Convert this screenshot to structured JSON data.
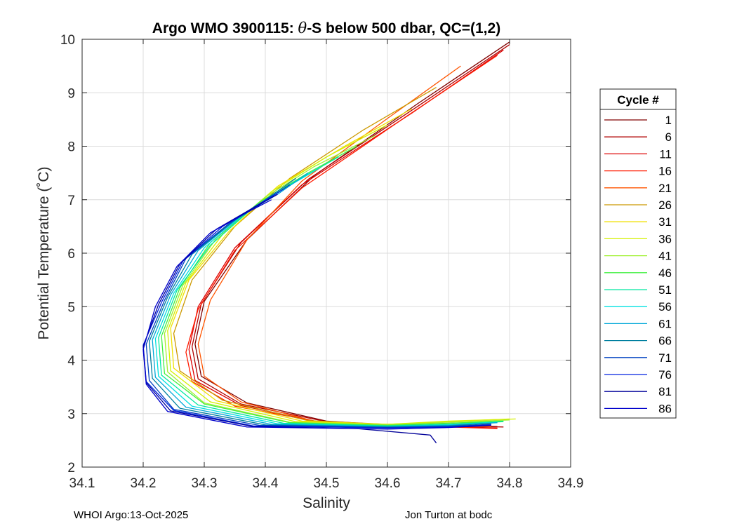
{
  "chart_data": {
    "type": "line",
    "title": "Argo WMO 3900115: θ-S below 500 dbar,  QC=(1,2)",
    "title_parts": {
      "pre": "Argo WMO 3900115: ",
      "symbol": "θ",
      "post": "-S below 500 dbar,  QC=(1,2)"
    },
    "xlabel": "Salinity",
    "ylabel": "Potential Temperature (˚C)",
    "xlim": [
      34.1,
      34.9
    ],
    "ylim": [
      2,
      10
    ],
    "x_ticks": [
      "34.1",
      "34.2",
      "34.3",
      "34.4",
      "34.5",
      "34.6",
      "34.7",
      "34.8",
      "34.9"
    ],
    "y_ticks": [
      "2",
      "3",
      "4",
      "5",
      "6",
      "7",
      "8",
      "9",
      "10"
    ],
    "grid": true,
    "legend": {
      "title": "Cycle #",
      "placement": "right-outside",
      "entries": [
        {
          "label": "1",
          "color": "#800000"
        },
        {
          "label": "6",
          "color": "#b00000"
        },
        {
          "label": "11",
          "color": "#dd0000"
        },
        {
          "label": "16",
          "color": "#ff1a00"
        },
        {
          "label": "21",
          "color": "#ff5500"
        },
        {
          "label": "26",
          "color": "#cc9900"
        },
        {
          "label": "31",
          "color": "#f0e000"
        },
        {
          "label": "36",
          "color": "#d4f000"
        },
        {
          "label": "41",
          "color": "#a0f030"
        },
        {
          "label": "46",
          "color": "#40f040"
        },
        {
          "label": "51",
          "color": "#00e8a0"
        },
        {
          "label": "56",
          "color": "#00e0e0"
        },
        {
          "label": "61",
          "color": "#00a8d8"
        },
        {
          "label": "66",
          "color": "#0080a0"
        },
        {
          "label": "71",
          "color": "#0040c0"
        },
        {
          "label": "76",
          "color": "#0020e0"
        },
        {
          "label": "81",
          "color": "#000099"
        },
        {
          "label": "86",
          "color": "#0000cc"
        }
      ]
    },
    "series": [
      {
        "name": "1",
        "points": [
          [
            34.8,
            9.95
          ],
          [
            34.65,
            8.8
          ],
          [
            34.48,
            7.45
          ],
          [
            34.37,
            6.25
          ],
          [
            34.3,
            5.1
          ],
          [
            34.285,
            4.3
          ],
          [
            34.295,
            3.7
          ],
          [
            34.37,
            3.2
          ],
          [
            34.5,
            2.86
          ],
          [
            34.6,
            2.79
          ],
          [
            34.7,
            2.78
          ],
          [
            34.78,
            2.76
          ]
        ]
      },
      {
        "name": "6",
        "points": [
          [
            34.8,
            9.9
          ],
          [
            34.65,
            8.75
          ],
          [
            34.47,
            7.38
          ],
          [
            34.36,
            6.2
          ],
          [
            34.295,
            5.05
          ],
          [
            34.28,
            4.25
          ],
          [
            34.29,
            3.65
          ],
          [
            34.36,
            3.18
          ],
          [
            34.5,
            2.85
          ],
          [
            34.6,
            2.78
          ],
          [
            34.7,
            2.77
          ],
          [
            34.79,
            2.75
          ]
        ]
      },
      {
        "name": "11",
        "points": [
          [
            34.79,
            9.8
          ],
          [
            34.64,
            8.62
          ],
          [
            34.46,
            7.28
          ],
          [
            34.35,
            6.1
          ],
          [
            34.29,
            5.0
          ],
          [
            34.275,
            4.2
          ],
          [
            34.285,
            3.62
          ],
          [
            34.36,
            3.15
          ],
          [
            34.49,
            2.84
          ],
          [
            34.6,
            2.77
          ],
          [
            34.7,
            2.76
          ],
          [
            34.78,
            2.73
          ]
        ]
      },
      {
        "name": "16",
        "points": [
          [
            34.78,
            9.7
          ],
          [
            34.63,
            8.55
          ],
          [
            34.46,
            7.22
          ],
          [
            34.35,
            6.05
          ],
          [
            34.29,
            4.95
          ],
          [
            34.27,
            4.15
          ],
          [
            34.28,
            3.6
          ],
          [
            34.35,
            3.14
          ],
          [
            34.49,
            2.84
          ],
          [
            34.6,
            2.77
          ],
          [
            34.7,
            2.75
          ],
          [
            34.78,
            2.72
          ]
        ]
      },
      {
        "name": "21",
        "points": [
          [
            34.72,
            9.5
          ],
          [
            34.6,
            8.52
          ],
          [
            34.46,
            7.35
          ],
          [
            34.37,
            6.25
          ],
          [
            34.31,
            5.12
          ],
          [
            34.29,
            4.3
          ],
          [
            34.3,
            3.7
          ],
          [
            34.36,
            3.22
          ],
          [
            34.48,
            2.86
          ],
          [
            34.6,
            2.78
          ],
          [
            34.7,
            2.78
          ],
          [
            34.77,
            2.76
          ]
        ]
      },
      {
        "name": "26",
        "points": [
          [
            34.68,
            9.1
          ],
          [
            34.56,
            8.3
          ],
          [
            34.44,
            7.4
          ],
          [
            34.35,
            6.5
          ],
          [
            34.28,
            5.5
          ],
          [
            34.25,
            4.5
          ],
          [
            34.26,
            3.8
          ],
          [
            34.33,
            3.25
          ],
          [
            34.47,
            2.87
          ],
          [
            34.6,
            2.8
          ],
          [
            34.7,
            2.82
          ],
          [
            34.78,
            2.85
          ]
        ]
      },
      {
        "name": "31",
        "points": [
          [
            34.64,
            8.7
          ],
          [
            34.53,
            8.0
          ],
          [
            34.42,
            7.25
          ],
          [
            34.34,
            6.4
          ],
          [
            34.275,
            5.5
          ],
          [
            34.245,
            4.6
          ],
          [
            34.25,
            3.85
          ],
          [
            34.32,
            3.24
          ],
          [
            34.46,
            2.86
          ],
          [
            34.6,
            2.8
          ],
          [
            34.7,
            2.85
          ],
          [
            34.8,
            2.9
          ]
        ]
      },
      {
        "name": "36",
        "points": [
          [
            34.6,
            8.4
          ],
          [
            34.5,
            7.8
          ],
          [
            34.41,
            7.15
          ],
          [
            34.33,
            6.35
          ],
          [
            34.27,
            5.45
          ],
          [
            34.24,
            4.55
          ],
          [
            34.245,
            3.8
          ],
          [
            34.31,
            3.22
          ],
          [
            34.45,
            2.85
          ],
          [
            34.6,
            2.8
          ],
          [
            34.7,
            2.86
          ],
          [
            34.81,
            2.9
          ]
        ]
      },
      {
        "name": "41",
        "points": [
          [
            34.58,
            8.2
          ],
          [
            34.48,
            7.62
          ],
          [
            34.4,
            7.05
          ],
          [
            34.32,
            6.28
          ],
          [
            34.265,
            5.4
          ],
          [
            34.235,
            4.5
          ],
          [
            34.24,
            3.78
          ],
          [
            34.3,
            3.2
          ],
          [
            34.44,
            2.84
          ],
          [
            34.6,
            2.79
          ],
          [
            34.7,
            2.84
          ],
          [
            34.8,
            2.88
          ]
        ]
      },
      {
        "name": "46",
        "points": [
          [
            34.55,
            8.0
          ],
          [
            34.47,
            7.5
          ],
          [
            34.39,
            6.95
          ],
          [
            34.31,
            6.2
          ],
          [
            34.26,
            5.35
          ],
          [
            34.23,
            4.45
          ],
          [
            34.235,
            3.75
          ],
          [
            34.3,
            3.18
          ],
          [
            34.44,
            2.83
          ],
          [
            34.6,
            2.78
          ],
          [
            34.7,
            2.82
          ],
          [
            34.79,
            2.86
          ]
        ]
      },
      {
        "name": "51",
        "points": [
          [
            34.52,
            7.8
          ],
          [
            34.45,
            7.35
          ],
          [
            34.38,
            6.85
          ],
          [
            34.31,
            6.15
          ],
          [
            34.255,
            5.3
          ],
          [
            34.225,
            4.42
          ],
          [
            34.23,
            3.72
          ],
          [
            34.29,
            3.16
          ],
          [
            34.43,
            2.82
          ],
          [
            34.6,
            2.77
          ],
          [
            34.7,
            2.8
          ],
          [
            34.79,
            2.85
          ]
        ]
      },
      {
        "name": "56",
        "points": [
          [
            34.49,
            7.6
          ],
          [
            34.43,
            7.2
          ],
          [
            34.37,
            6.78
          ],
          [
            34.3,
            6.1
          ],
          [
            34.25,
            5.25
          ],
          [
            34.22,
            4.4
          ],
          [
            34.225,
            3.7
          ],
          [
            34.28,
            3.14
          ],
          [
            34.42,
            2.81
          ],
          [
            34.6,
            2.76
          ],
          [
            34.7,
            2.79
          ],
          [
            34.78,
            2.84
          ]
        ]
      },
      {
        "name": "61",
        "points": [
          [
            34.47,
            7.5
          ],
          [
            34.42,
            7.1
          ],
          [
            34.36,
            6.7
          ],
          [
            34.29,
            6.05
          ],
          [
            34.245,
            5.22
          ],
          [
            34.215,
            4.38
          ],
          [
            34.22,
            3.68
          ],
          [
            34.27,
            3.12
          ],
          [
            34.41,
            2.8
          ],
          [
            34.6,
            2.76
          ],
          [
            34.7,
            2.78
          ],
          [
            34.78,
            2.83
          ]
        ]
      },
      {
        "name": "66",
        "points": [
          [
            34.45,
            7.4
          ],
          [
            34.4,
            7.0
          ],
          [
            34.35,
            6.62
          ],
          [
            34.28,
            5.98
          ],
          [
            34.24,
            5.18
          ],
          [
            34.21,
            4.35
          ],
          [
            34.215,
            3.66
          ],
          [
            34.26,
            3.1
          ],
          [
            34.4,
            2.79
          ],
          [
            34.6,
            2.75
          ],
          [
            34.7,
            2.77
          ],
          [
            34.77,
            2.82
          ]
        ]
      },
      {
        "name": "71",
        "points": [
          [
            34.44,
            7.28
          ],
          [
            34.39,
            6.9
          ],
          [
            34.34,
            6.55
          ],
          [
            34.27,
            5.9
          ],
          [
            34.235,
            5.12
          ],
          [
            34.205,
            4.3
          ],
          [
            34.21,
            3.62
          ],
          [
            34.25,
            3.08
          ],
          [
            34.39,
            2.78
          ],
          [
            34.6,
            2.74
          ],
          [
            34.7,
            2.76
          ],
          [
            34.77,
            2.8
          ]
        ]
      },
      {
        "name": "76",
        "points": [
          [
            34.43,
            7.2
          ],
          [
            34.38,
            6.85
          ],
          [
            34.33,
            6.5
          ],
          [
            34.265,
            5.85
          ],
          [
            34.23,
            5.08
          ],
          [
            34.2,
            4.28
          ],
          [
            34.205,
            3.6
          ],
          [
            34.25,
            3.06
          ],
          [
            34.38,
            2.77
          ],
          [
            34.6,
            2.73
          ],
          [
            34.7,
            2.75
          ],
          [
            34.77,
            2.79
          ]
        ]
      },
      {
        "name": "81",
        "points": [
          [
            34.42,
            7.1
          ],
          [
            34.37,
            6.78
          ],
          [
            34.32,
            6.45
          ],
          [
            34.26,
            5.8
          ],
          [
            34.225,
            5.04
          ],
          [
            34.2,
            4.25
          ],
          [
            34.205,
            3.58
          ],
          [
            34.245,
            3.05
          ],
          [
            34.38,
            2.76
          ],
          [
            34.55,
            2.72
          ],
          [
            34.67,
            2.6
          ],
          [
            34.68,
            2.45
          ]
        ]
      },
      {
        "name": "86",
        "points": [
          [
            34.41,
            7.0
          ],
          [
            34.36,
            6.7
          ],
          [
            34.31,
            6.38
          ],
          [
            34.255,
            5.75
          ],
          [
            34.22,
            5.0
          ],
          [
            34.2,
            4.2
          ],
          [
            34.205,
            3.55
          ],
          [
            34.24,
            3.04
          ],
          [
            34.37,
            2.75
          ],
          [
            34.6,
            2.71
          ],
          [
            34.7,
            2.74
          ],
          [
            34.77,
            2.78
          ]
        ]
      }
    ]
  },
  "footer": {
    "left": "WHOI Argo:13-Oct-2025",
    "right": "Jon Turton at bodc"
  }
}
